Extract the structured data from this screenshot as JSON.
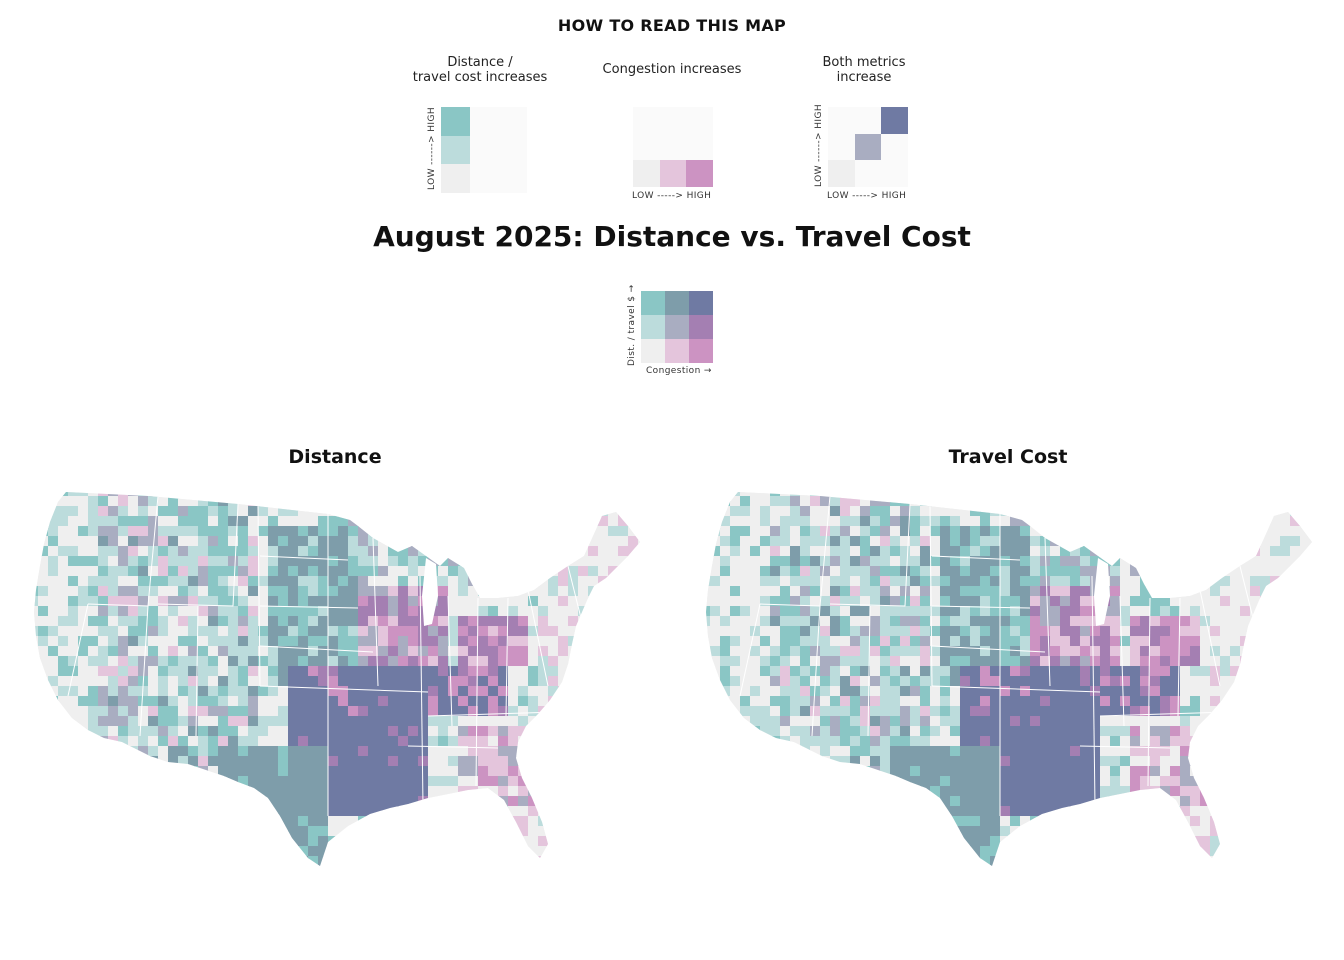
{
  "howto": {
    "title": "HOW TO READ THIS MAP",
    "panel1_caption_line1": "Distance /",
    "panel1_caption_line2": "travel cost increases",
    "panel2_caption": "Congestion increases",
    "panel3_caption_line1": "Both metrics",
    "panel3_caption_line2": "increase",
    "axis_low_high_vertical": "LOW ------> HIGH",
    "axis_low_high_horizontal": "LOW -----> HIGH"
  },
  "main_title": "August 2025: Distance vs. Travel Cost",
  "bivariate_legend": {
    "y_label": "Dist. / travel $ →",
    "x_label": "Congestion →",
    "colors": [
      [
        "#8ac6c5",
        "#7e9daa",
        "#6f7aa3"
      ],
      [
        "#bcdcdc",
        "#a9adc1",
        "#a47fb2"
      ],
      [
        "#efefef",
        "#e4c5dc",
        "#cc93c2"
      ]
    ]
  },
  "maps": [
    {
      "id": "distance",
      "title": "Distance"
    },
    {
      "id": "travel_cost",
      "title": "Travel Cost"
    }
  ],
  "palette": {
    "low": "#efefef",
    "dist_mid": "#bcdcdc",
    "dist_high": "#8ac6c5",
    "cong_mid": "#e4c5dc",
    "cong_high": "#cc93c2",
    "both_mid": "#a9adc1",
    "both_high": "#6f7aa3",
    "mix_a": "#7e9daa",
    "mix_b": "#a47fb2"
  }
}
